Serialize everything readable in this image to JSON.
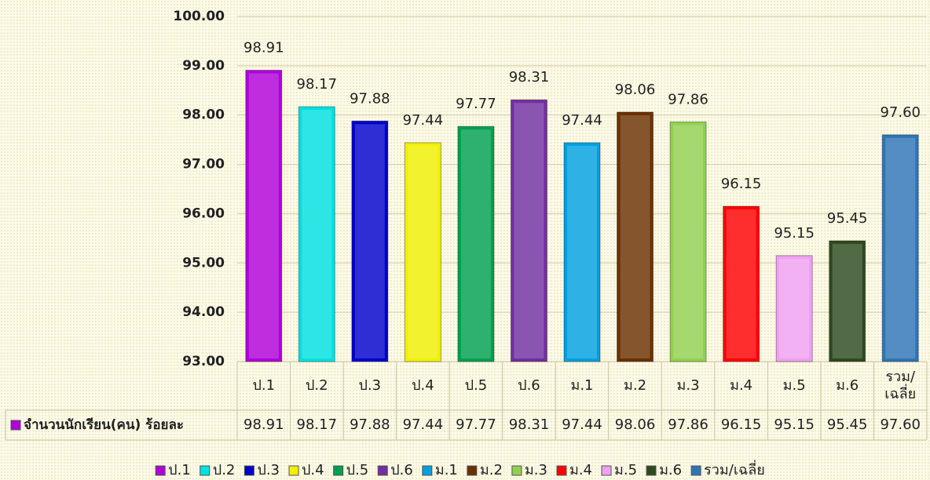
{
  "chart_data": {
    "type": "bar",
    "categories": [
      "ป.1",
      "ป.2",
      "ป.3",
      "ป.4",
      "ป.5",
      "ป.6",
      "ม.1",
      "ม.2",
      "ม.3",
      "ม.4",
      "ม.5",
      "ม.6",
      "รวม/เฉลี่ย"
    ],
    "series": [
      {
        "name": "จำนวนนักเรียน(คน) ร้อยละ",
        "values": [
          98.91,
          98.17,
          97.88,
          97.44,
          97.77,
          98.31,
          97.44,
          98.06,
          97.86,
          96.15,
          95.15,
          95.45,
          97.6
        ],
        "value_labels": [
          "98.91",
          "98.17",
          "97.88",
          "97.44",
          "97.77",
          "98.31",
          "97.44",
          "98.06",
          "97.86",
          "96.15",
          "95.15",
          "95.45",
          "97.60"
        ],
        "colors": [
          "#b000d8",
          "#00e0e0",
          "#0000cc",
          "#f0f000",
          "#00a050",
          "#7030a0",
          "#00a0e0",
          "#6b3000",
          "#92d050",
          "#ff0000",
          "#f0a0f0",
          "#2e4a1e",
          "#2e75b6"
        ]
      }
    ],
    "ylim": [
      93,
      100
    ],
    "yticks": [
      {
        "value": 93,
        "label": "93.00"
      },
      {
        "value": 94,
        "label": "94.00"
      },
      {
        "value": 95,
        "label": "95.00"
      },
      {
        "value": 96,
        "label": "96.00"
      },
      {
        "value": 97,
        "label": "97.00"
      },
      {
        "value": 98,
        "label": "98.00"
      },
      {
        "value": 99,
        "label": "99.00"
      },
      {
        "value": 100,
        "label": "100.00"
      }
    ],
    "grid": true,
    "legend": "bottom",
    "data_table": true
  }
}
